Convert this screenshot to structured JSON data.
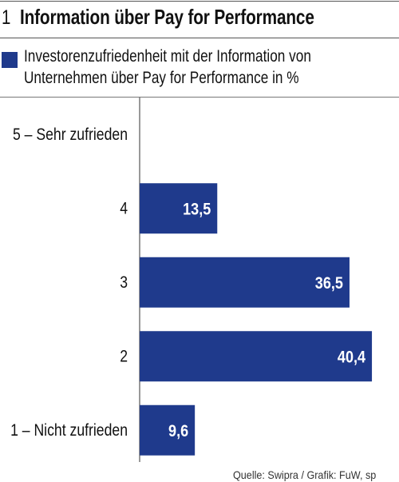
{
  "title": {
    "number": "1",
    "text": "Information über Pay for Performance"
  },
  "legend": {
    "line1": "Investorenzufriedenheit mit der Information von",
    "line2": "Unternehmen über Pay for Performance in %"
  },
  "source": "Quelle: Swipra / Grafik: FuW, sp",
  "colors": {
    "bar": "#1f3a8c",
    "bar_label": "#ffffff",
    "axis": "#333333"
  },
  "chart_data": {
    "type": "bar",
    "orientation": "horizontal",
    "categories": [
      "5 – Sehr zufrieden",
      "4",
      "3",
      "2",
      "1 – Nicht zufrieden"
    ],
    "values": [
      null,
      13.5,
      36.5,
      40.4,
      9.6
    ],
    "value_labels": [
      "",
      "13,5",
      "36,5",
      "40,4",
      "9,6"
    ],
    "xlim": [
      0,
      44
    ],
    "unit": "%",
    "grid": false,
    "legend_position": "top"
  }
}
